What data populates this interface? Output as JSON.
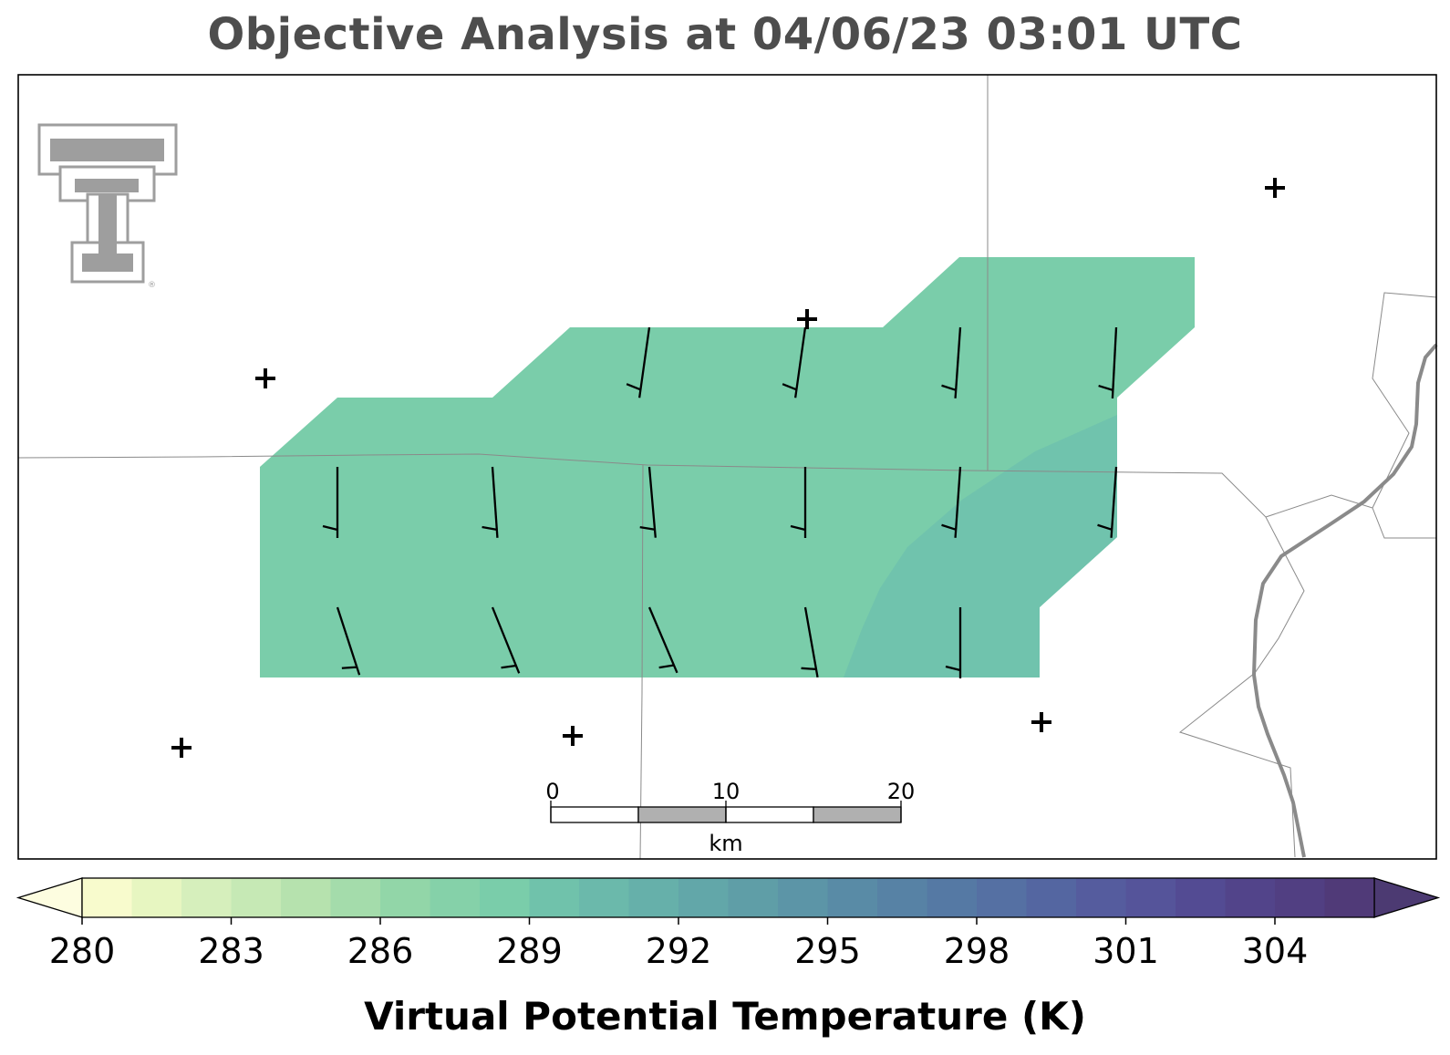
{
  "title": "Objective Analysis at 04/06/23 03:01 UTC",
  "logo": {
    "name": "texas-tech-double-t-logo",
    "color": "#9e9e9e"
  },
  "scale_bar": {
    "ticks": [
      "0",
      "10",
      "20"
    ],
    "unit": "km"
  },
  "colorbar": {
    "label": "Virtual Potential Temperature (K)",
    "min": 280,
    "max": 306,
    "step": 1,
    "extend": "both",
    "tick_labels": [
      "280",
      "283",
      "286",
      "289",
      "292",
      "295",
      "298",
      "301",
      "304"
    ],
    "colors": [
      "#f8fbcd",
      "#e7f6c1",
      "#d6efbc",
      "#c6e9b5",
      "#b6e2ae",
      "#a4dcab",
      "#92d6a8",
      "#85d1a9",
      "#7acdaa",
      "#70c2ab",
      "#6bb9ab",
      "#66b0aa",
      "#62a7a9",
      "#5f9ea7",
      "#5c95a7",
      "#598ba6",
      "#5782a5",
      "#5579a4",
      "#5570a3",
      "#5466a1",
      "#555c9e",
      "#55549a",
      "#534b93",
      "#52448a",
      "#513f82",
      "#503a78"
    ],
    "extend_colors": [
      "#fdfde0",
      "#4c3a72"
    ]
  },
  "field": {
    "name": "virtual-potential-temperature",
    "main_color": "#7acdaa",
    "warm_color": "#70c3ad"
  },
  "stations": [
    {
      "id": "station-1"
    },
    {
      "id": "station-2"
    },
    {
      "id": "station-3"
    },
    {
      "id": "station-4"
    },
    {
      "id": "station-5"
    },
    {
      "id": "station-6"
    },
    {
      "id": "station-7"
    }
  ],
  "wind_barbs": [
    {
      "row": 1,
      "col": 3,
      "dir_deg": 188,
      "speed_kt": 5
    },
    {
      "row": 1,
      "col": 4,
      "dir_deg": 188,
      "speed_kt": 5
    },
    {
      "row": 1,
      "col": 5,
      "dir_deg": 184,
      "speed_kt": 5
    },
    {
      "row": 1,
      "col": 6,
      "dir_deg": 183,
      "speed_kt": 5
    },
    {
      "row": 2,
      "col": 1,
      "dir_deg": 180,
      "speed_kt": 5
    },
    {
      "row": 2,
      "col": 2,
      "dir_deg": 176,
      "speed_kt": 5
    },
    {
      "row": 2,
      "col": 3,
      "dir_deg": 175,
      "speed_kt": 5
    },
    {
      "row": 2,
      "col": 4,
      "dir_deg": 180,
      "speed_kt": 5
    },
    {
      "row": 2,
      "col": 5,
      "dir_deg": 184,
      "speed_kt": 5
    },
    {
      "row": 2,
      "col": 6,
      "dir_deg": 184,
      "speed_kt": 5
    },
    {
      "row": 3,
      "col": 1,
      "dir_deg": 162,
      "speed_kt": 5
    },
    {
      "row": 3,
      "col": 2,
      "dir_deg": 158,
      "speed_kt": 5
    },
    {
      "row": 3,
      "col": 3,
      "dir_deg": 157,
      "speed_kt": 5
    },
    {
      "row": 3,
      "col": 4,
      "dir_deg": 170,
      "speed_kt": 5
    },
    {
      "row": 3,
      "col": 5,
      "dir_deg": 180,
      "speed_kt": 5
    }
  ]
}
